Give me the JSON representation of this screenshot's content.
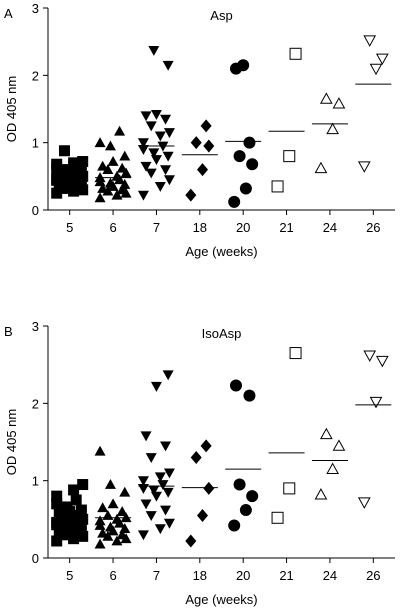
{
  "chart_data": [
    {
      "type": "scatter",
      "panel_label": "A",
      "title": "Asp",
      "xlabel": "Age (weeks)",
      "ylabel": "OD 405 nm",
      "ylim": [
        0,
        3
      ],
      "yticks": [
        0,
        1,
        2,
        3
      ],
      "categories": [
        "5",
        "6",
        "7",
        "18",
        "20",
        "21",
        "24",
        "26"
      ],
      "grid": false,
      "legend": "none",
      "series": [
        {
          "category": "5",
          "marker": "filled-square",
          "mean": 0.48,
          "values": [
            0.88,
            0.72,
            0.7,
            0.68,
            0.65,
            0.62,
            0.6,
            0.58,
            0.56,
            0.55,
            0.53,
            0.52,
            0.5,
            0.48,
            0.47,
            0.45,
            0.44,
            0.42,
            0.4,
            0.38,
            0.36,
            0.34,
            0.32,
            0.3,
            0.28,
            0.25
          ]
        },
        {
          "category": "6",
          "marker": "filled-triangle-up",
          "mean": 0.48,
          "values": [
            1.17,
            1.0,
            0.95,
            0.8,
            0.72,
            0.65,
            0.62,
            0.6,
            0.55,
            0.5,
            0.48,
            0.45,
            0.42,
            0.4,
            0.38,
            0.35,
            0.32,
            0.3,
            0.28,
            0.25,
            0.22,
            0.18
          ]
        },
        {
          "category": "7",
          "marker": "filled-triangle-down",
          "mean": 0.95,
          "values": [
            2.37,
            2.15,
            1.42,
            1.4,
            1.35,
            1.25,
            1.15,
            1.1,
            1.0,
            0.95,
            0.9,
            0.85,
            0.8,
            0.75,
            0.65,
            0.6,
            0.55,
            0.45,
            0.35,
            0.22
          ]
        },
        {
          "category": "18",
          "marker": "filled-diamond",
          "mean": 0.82,
          "values": [
            1.25,
            1.0,
            0.95,
            0.6,
            0.22
          ]
        },
        {
          "category": "20",
          "marker": "filled-circle",
          "mean": 1.02,
          "values": [
            2.15,
            2.1,
            1.0,
            0.8,
            0.68,
            0.32,
            0.12
          ]
        },
        {
          "category": "21",
          "marker": "open-square",
          "mean": 1.17,
          "values": [
            2.32,
            0.8,
            0.35
          ]
        },
        {
          "category": "24",
          "marker": "open-triangle-up",
          "mean": 1.28,
          "values": [
            1.65,
            1.58,
            1.2,
            0.62
          ]
        },
        {
          "category": "26",
          "marker": "open-triangle-down",
          "mean": 1.87,
          "values": [
            2.52,
            2.25,
            2.1,
            0.65
          ]
        }
      ]
    },
    {
      "type": "scatter",
      "panel_label": "B",
      "title": "IsoAsp",
      "xlabel": "Age (weeks)",
      "ylabel": "OD 405 nm",
      "ylim": [
        0,
        3
      ],
      "yticks": [
        0,
        1,
        2,
        3
      ],
      "categories": [
        "5",
        "6",
        "7",
        "18",
        "20",
        "21",
        "24",
        "26"
      ],
      "grid": false,
      "legend": "none",
      "series": [
        {
          "category": "5",
          "marker": "filled-square",
          "mean": 0.5,
          "values": [
            0.95,
            0.88,
            0.8,
            0.75,
            0.7,
            0.66,
            0.62,
            0.6,
            0.58,
            0.55,
            0.53,
            0.5,
            0.48,
            0.46,
            0.45,
            0.43,
            0.41,
            0.4,
            0.38,
            0.35,
            0.33,
            0.3,
            0.28,
            0.25,
            0.22
          ]
        },
        {
          "category": "6",
          "marker": "filled-triangle-up",
          "mean": 0.52,
          "values": [
            1.38,
            0.95,
            0.85,
            0.7,
            0.65,
            0.6,
            0.55,
            0.52,
            0.5,
            0.48,
            0.45,
            0.42,
            0.4,
            0.38,
            0.35,
            0.32,
            0.3,
            0.28,
            0.25,
            0.22,
            0.18
          ]
        },
        {
          "category": "7",
          "marker": "filled-triangle-down",
          "mean": 0.93,
          "values": [
            2.37,
            2.22,
            1.58,
            1.45,
            1.3,
            1.1,
            1.05,
            1.0,
            0.95,
            0.9,
            0.88,
            0.85,
            0.8,
            0.7,
            0.62,
            0.55,
            0.45,
            0.38,
            0.3
          ]
        },
        {
          "category": "18",
          "marker": "filled-diamond",
          "mean": 0.91,
          "values": [
            1.45,
            1.3,
            0.9,
            0.55,
            0.22
          ]
        },
        {
          "category": "20",
          "marker": "filled-circle",
          "mean": 1.15,
          "values": [
            2.23,
            2.1,
            0.95,
            0.8,
            0.62,
            0.42
          ]
        },
        {
          "category": "21",
          "marker": "open-square",
          "mean": 1.36,
          "values": [
            2.65,
            0.9,
            0.52
          ]
        },
        {
          "category": "24",
          "marker": "open-triangle-up",
          "mean": 1.26,
          "values": [
            1.6,
            1.45,
            1.15,
            0.82
          ]
        },
        {
          "category": "26",
          "marker": "open-triangle-down",
          "mean": 1.98,
          "values": [
            2.62,
            2.55,
            2.02,
            0.72
          ]
        }
      ]
    }
  ]
}
